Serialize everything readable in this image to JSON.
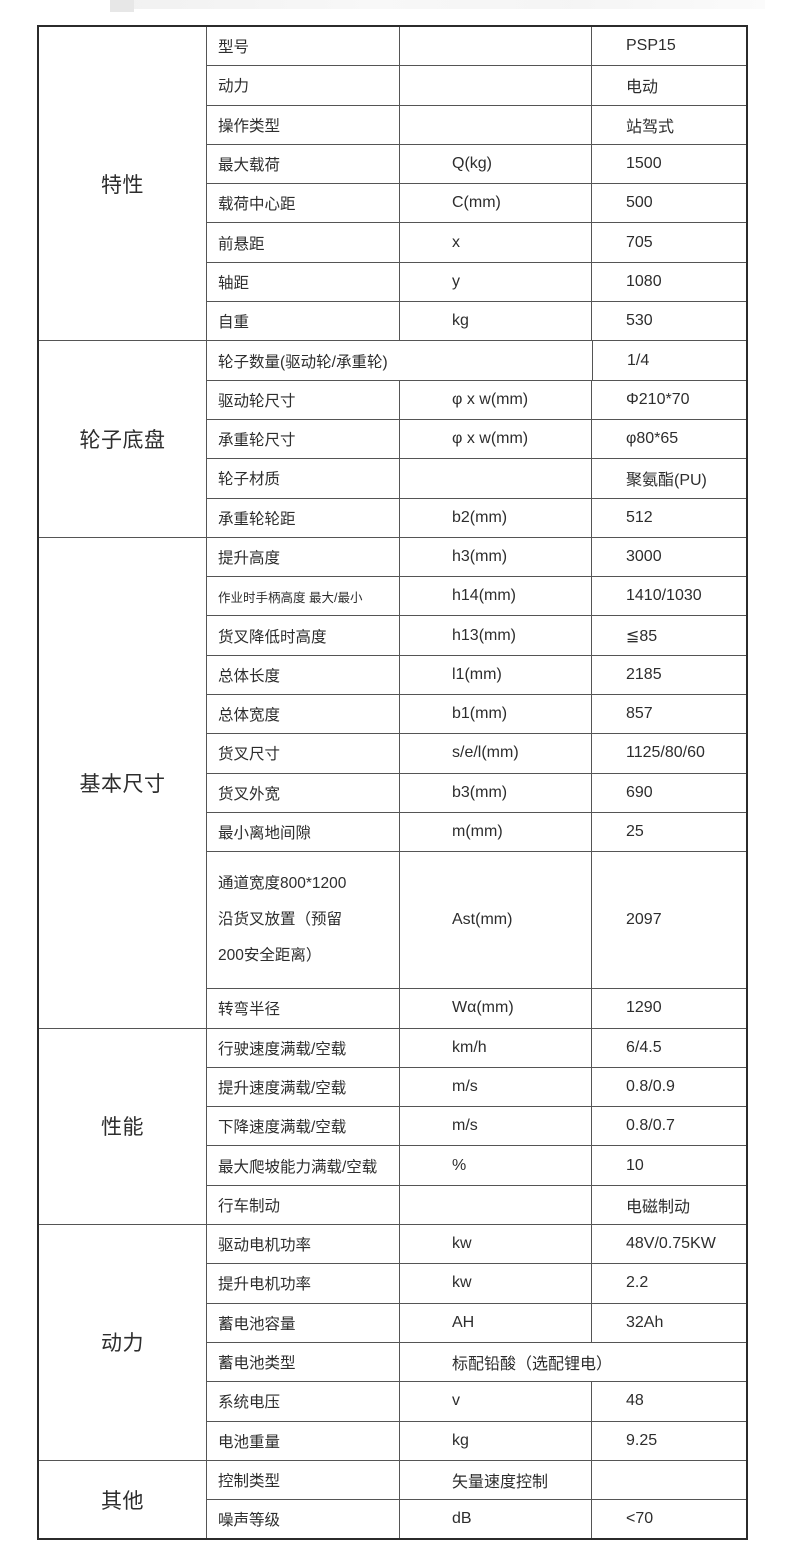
{
  "page": {
    "background": "#ffffff",
    "text_color": "#2d2d2d",
    "grid_line_color": "#555555",
    "outer_border_color": "#2b2b2b"
  },
  "table": {
    "columns": [
      "category",
      "label",
      "unit",
      "value"
    ],
    "sections": [
      {
        "category": "特性",
        "rows": [
          {
            "label": "型号",
            "unit": "",
            "value": "PSP15"
          },
          {
            "label": "动力",
            "unit": "",
            "value": "电动"
          },
          {
            "label": "操作类型",
            "unit": "",
            "value": "站驾式"
          },
          {
            "label": "最大载荷",
            "unit": "Q(kg)",
            "value": "1500"
          },
          {
            "label": "载荷中心距",
            "unit": "C(mm)",
            "value": "500"
          },
          {
            "label": "前悬距",
            "unit": "x",
            "value": "705"
          },
          {
            "label": "轴距",
            "unit": "y",
            "value": "1080"
          },
          {
            "label": "自重",
            "unit": "kg",
            "value": "530"
          }
        ]
      },
      {
        "category": "轮子底盘",
        "rows": [
          {
            "label": "轮子数量(驱动轮/承重轮)",
            "value": "1/4",
            "span": "label-unit"
          },
          {
            "label": "驱动轮尺寸",
            "unit": "φ x w(mm)",
            "value": "Φ210*70"
          },
          {
            "label": "承重轮尺寸",
            "unit": "φ x w(mm)",
            "value": "φ80*65"
          },
          {
            "label": "轮子材质",
            "unit": "",
            "value": "聚氨酯(PU)"
          },
          {
            "label": "承重轮轮距",
            "unit": "b2(mm)",
            "value": "512"
          }
        ]
      },
      {
        "category": "基本尺寸",
        "rows": [
          {
            "label": "提升高度",
            "unit": "h3(mm)",
            "value": "3000"
          },
          {
            "label": "作业时手柄高度  最大/最小",
            "unit": "h14(mm)",
            "value": "1410/1030",
            "small_label": true
          },
          {
            "label": "货叉降低时高度",
            "unit": "h13(mm)",
            "value": "≦85"
          },
          {
            "label": "总体长度",
            "unit": "l1(mm)",
            "value": "2185"
          },
          {
            "label": "总体宽度",
            "unit": "b1(mm)",
            "value": "857"
          },
          {
            "label": "货叉尺寸",
            "unit": "s/e/l(mm)",
            "value": "1125/80/60"
          },
          {
            "label": "货叉外宽",
            "unit": "b3(mm)",
            "value": "690"
          },
          {
            "label": "最小离地间隙",
            "unit": "m(mm)",
            "value": "25"
          },
          {
            "label": "通道宽度800*1200\n沿货叉放置（预留\n200安全距离）",
            "unit": "Ast(mm)",
            "value": "2097",
            "tall": true
          },
          {
            "label": "转弯半径",
            "unit": "Wα(mm)",
            "value": "1290"
          }
        ]
      },
      {
        "category": "性能",
        "rows": [
          {
            "label": "行驶速度满载/空载",
            "unit": "km/h",
            "value": "6/4.5"
          },
          {
            "label": "提升速度满载/空载",
            "unit": "m/s",
            "value": "0.8/0.9"
          },
          {
            "label": "下降速度满载/空载",
            "unit": "m/s",
            "value": "0.8/0.7"
          },
          {
            "label": "最大爬坡能力满载/空载",
            "unit": "%",
            "value": "10"
          },
          {
            "label": "行车制动",
            "unit": "",
            "value": "电磁制动"
          }
        ]
      },
      {
        "category": "动力",
        "rows": [
          {
            "label": "驱动电机功率",
            "unit": "kw",
            "value": "48V/0.75KW"
          },
          {
            "label": "提升电机功率",
            "unit": "kw",
            "value": "2.2"
          },
          {
            "label": "蓄电池容量",
            "unit": "AH",
            "value": "32Ah"
          },
          {
            "label": "蓄电池类型",
            "unit": "标配铅酸（选配锂电）",
            "span": "unit-value"
          },
          {
            "label": "系统电压",
            "unit": "v",
            "value": "48"
          },
          {
            "label": "电池重量",
            "unit": "kg",
            "value": "9.25"
          }
        ]
      },
      {
        "category": "其他",
        "rows": [
          {
            "label": "控制类型",
            "unit": "矢量速度控制",
            "value": ""
          },
          {
            "label": "噪声等级",
            "unit": "dB",
            "value": "<70"
          }
        ]
      }
    ]
  }
}
